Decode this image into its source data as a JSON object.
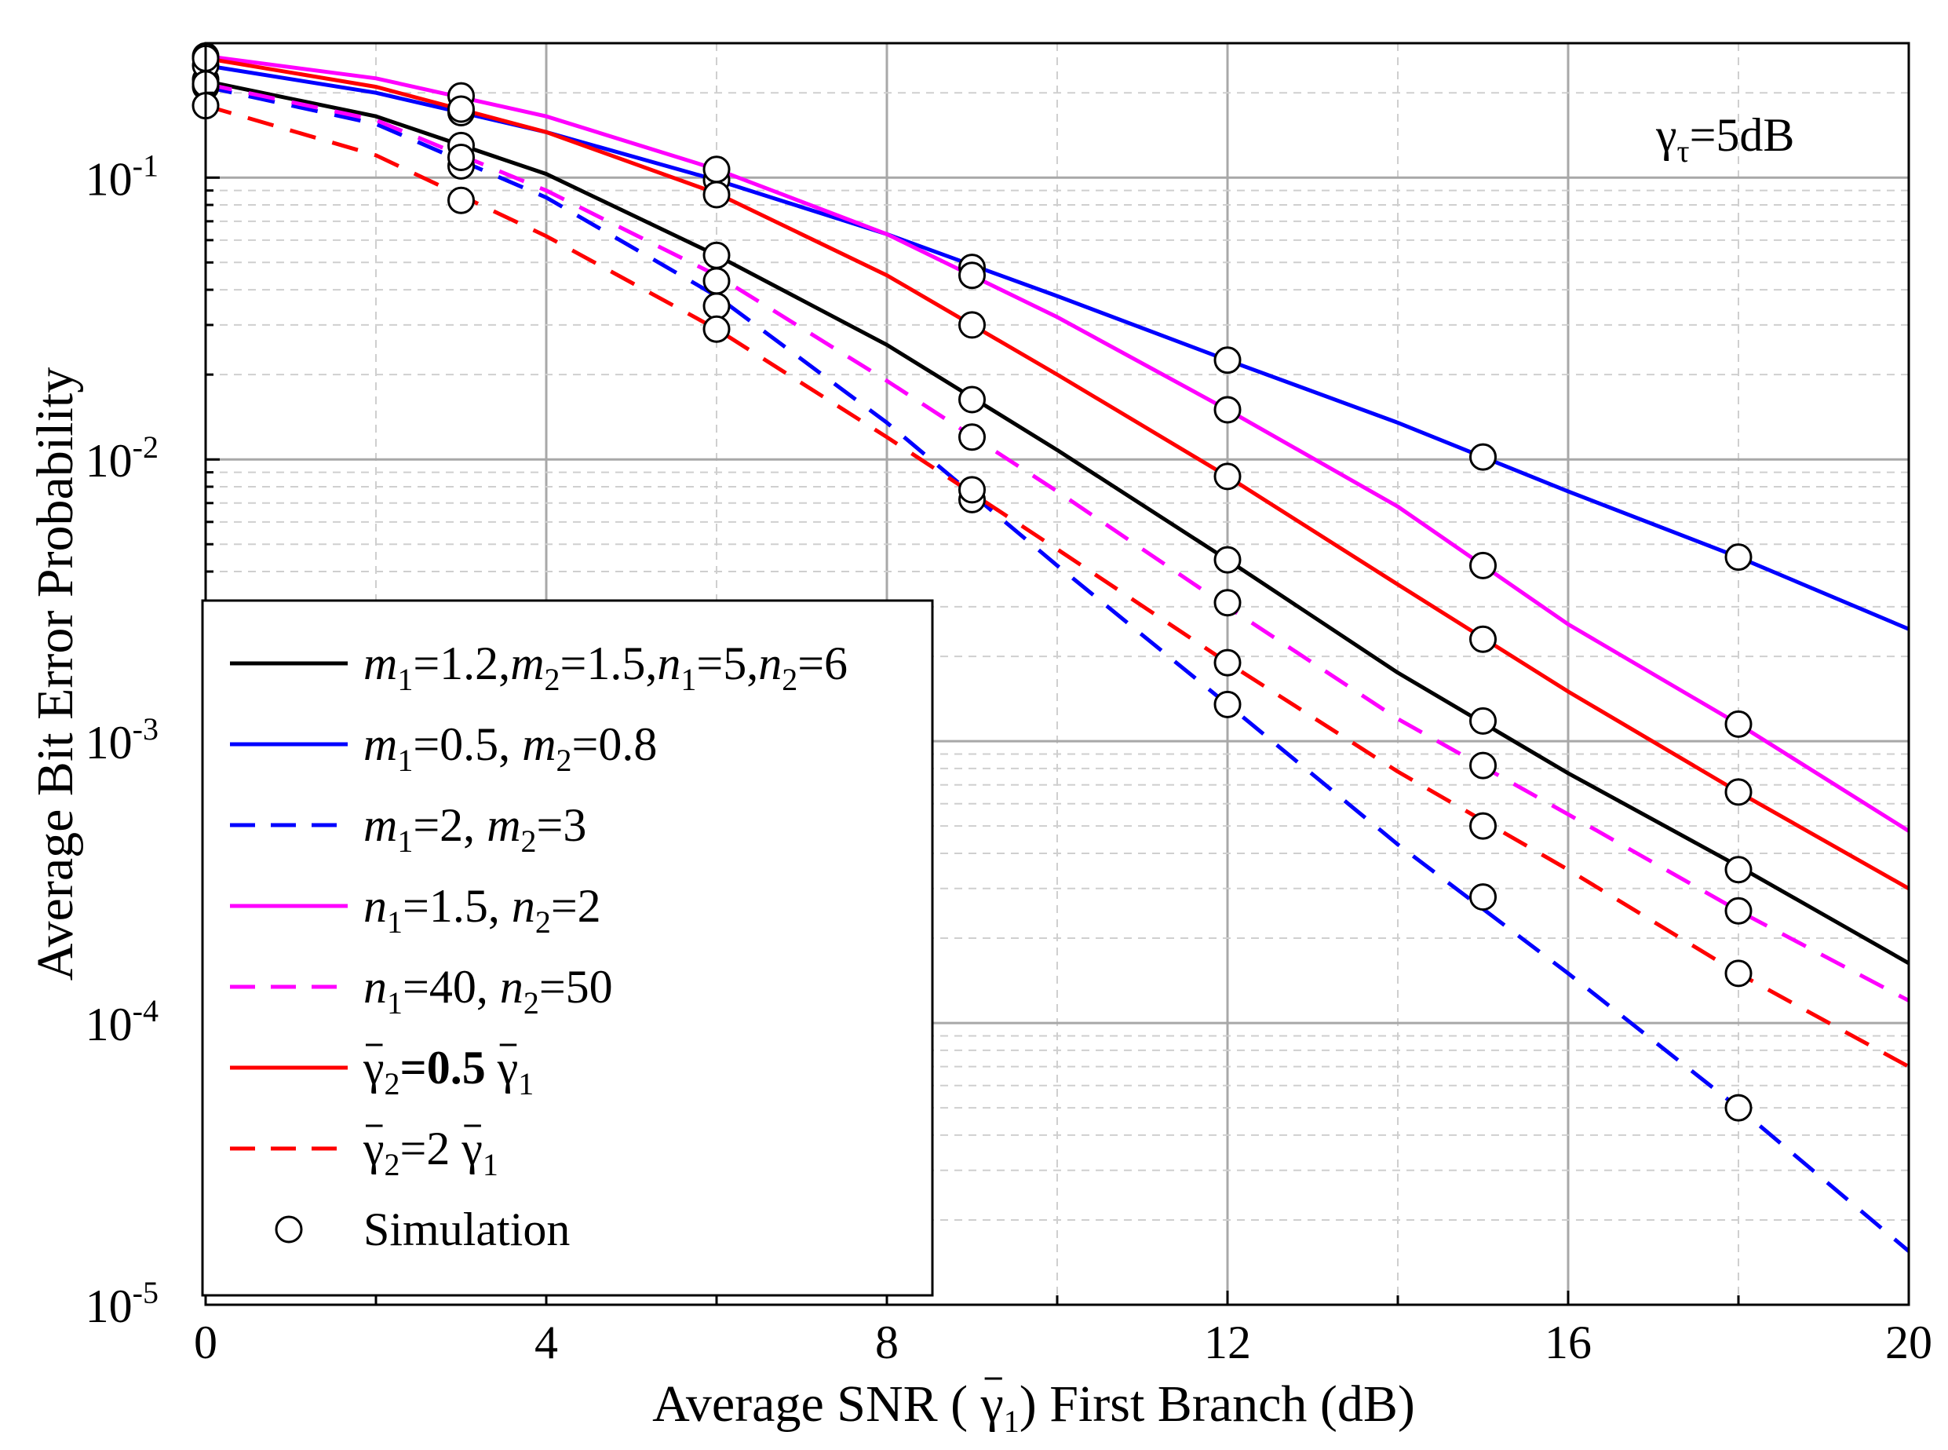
{
  "chart_data": {
    "type": "line",
    "ylabel": "Average Bit Error Probability",
    "xlabel_parts": {
      "before": "Average SNR ( ",
      "symbol": "γ",
      "sub": "1",
      "after": ") First Branch (dB)"
    },
    "annotation": {
      "symbol": "γ",
      "sub": "τ",
      "text": "=5dB"
    },
    "x_scale": "linear",
    "y_scale": "log",
    "xlim": [
      0,
      20
    ],
    "ylim": [
      1e-05,
      0.3
    ],
    "x_ticks": [
      0,
      4,
      8,
      12,
      16,
      20
    ],
    "x_tick_labels": [
      "0",
      "4",
      "8",
      "12",
      "16",
      "20"
    ],
    "y_ticks": [
      0.1,
      0.01,
      0.001,
      0.0001,
      1e-05
    ],
    "y_tick_labels": [
      {
        "base": "10",
        "exp": "-1"
      },
      {
        "base": "10",
        "exp": "-2"
      },
      {
        "base": "10",
        "exp": "-3"
      },
      {
        "base": "10",
        "exp": "-4"
      },
      {
        "base": "10",
        "exp": "-5"
      }
    ],
    "grid": true,
    "legend_position": "lower-left",
    "series": [
      {
        "id": "black-solid",
        "color": "#000000",
        "dash": "solid",
        "legend": "m1=1.2,m2=1.5,n1=5,n2=6",
        "legend_parts": [
          {
            "t": "m",
            "i": true
          },
          {
            "t": "1",
            "sub": true
          },
          {
            "t": "=1.2,"
          },
          {
            "t": "m",
            "i": true
          },
          {
            "t": "2",
            "sub": true
          },
          {
            "t": "=1.5,"
          },
          {
            "t": "n",
            "i": true
          },
          {
            "t": "1",
            "sub": true
          },
          {
            "t": "=5,"
          },
          {
            "t": "n",
            "i": true
          },
          {
            "t": "2",
            "sub": true
          },
          {
            "t": "=6"
          }
        ],
        "x": [
          0,
          2,
          4,
          6,
          8,
          10,
          12,
          14,
          16,
          18,
          20
        ],
        "y": [
          0.22,
          0.165,
          0.103,
          0.053,
          0.0255,
          0.0108,
          0.0044,
          0.00175,
          0.00077,
          0.00036,
          0.000163
        ],
        "sim_x": [
          0,
          3,
          6,
          9,
          12,
          15,
          18
        ],
        "sim_y": [
          0.223,
          0.13,
          0.053,
          0.0163,
          0.0044,
          0.00118,
          0.00035
        ]
      },
      {
        "id": "blue-solid",
        "color": "#0000ff",
        "dash": "solid",
        "legend": "m1=0.5, m2=0.8",
        "legend_parts": [
          {
            "t": "m",
            "i": true
          },
          {
            "t": "1",
            "sub": true
          },
          {
            "t": "=0.5, "
          },
          {
            "t": "m",
            "i": true
          },
          {
            "t": "2",
            "sub": true
          },
          {
            "t": "=0.8"
          }
        ],
        "x": [
          0,
          2,
          4,
          6,
          8,
          10,
          12,
          14,
          16,
          18,
          20
        ],
        "y": [
          0.25,
          0.2,
          0.145,
          0.098,
          0.063,
          0.038,
          0.0225,
          0.0135,
          0.0077,
          0.0045,
          0.0025
        ],
        "sim_x": [
          0,
          3,
          6,
          9,
          12,
          15,
          18
        ],
        "sim_y": [
          0.25,
          0.17,
          0.098,
          0.048,
          0.0225,
          0.0102,
          0.0045
        ]
      },
      {
        "id": "blue-dashed",
        "color": "#0000ff",
        "dash": "dashed",
        "legend": "m1=2, m2=3",
        "legend_parts": [
          {
            "t": "m",
            "i": true
          },
          {
            "t": "1",
            "sub": true
          },
          {
            "t": "=2, "
          },
          {
            "t": "m",
            "i": true
          },
          {
            "t": "2",
            "sub": true
          },
          {
            "t": "=3"
          }
        ],
        "x": [
          0,
          2,
          4,
          6,
          8,
          10,
          12,
          14,
          16,
          18,
          20
        ],
        "y": [
          0.21,
          0.155,
          0.085,
          0.038,
          0.0135,
          0.0042,
          0.00135,
          0.00043,
          0.00015,
          5e-05,
          1.55e-05
        ],
        "sim_x": [
          0,
          3,
          6,
          9,
          12,
          15,
          18
        ],
        "sim_y": [
          0.21,
          0.11,
          0.035,
          0.0072,
          0.00135,
          0.00028,
          5e-05
        ]
      },
      {
        "id": "magenta-solid",
        "color": "#ff00ff",
        "dash": "solid",
        "legend": "n1=1.5, n2=2",
        "legend_parts": [
          {
            "t": "n",
            "i": true
          },
          {
            "t": "1",
            "sub": true
          },
          {
            "t": "=1.5, "
          },
          {
            "t": "n",
            "i": true
          },
          {
            "t": "2",
            "sub": true
          },
          {
            "t": "=2"
          }
        ],
        "x": [
          0,
          2,
          4,
          6,
          8,
          10,
          12,
          14,
          16,
          18,
          20
        ],
        "y": [
          0.27,
          0.225,
          0.165,
          0.107,
          0.063,
          0.032,
          0.015,
          0.0068,
          0.0026,
          0.00115,
          0.00048
        ],
        "sim_x": [
          0,
          3,
          6,
          9,
          12,
          15,
          18
        ],
        "sim_y": [
          0.27,
          0.195,
          0.107,
          0.045,
          0.015,
          0.0042,
          0.00115
        ]
      },
      {
        "id": "magenta-dashed",
        "color": "#ff00ff",
        "dash": "dashed",
        "legend": "n1=40, n2=50",
        "legend_parts": [
          {
            "t": "n",
            "i": true
          },
          {
            "t": "1",
            "sub": true
          },
          {
            "t": "=40, "
          },
          {
            "t": "n",
            "i": true
          },
          {
            "t": "2",
            "sub": true
          },
          {
            "t": "=50"
          }
        ],
        "x": [
          0,
          2,
          4,
          6,
          8,
          10,
          12,
          14,
          16,
          18,
          20
        ],
        "y": [
          0.215,
          0.16,
          0.09,
          0.045,
          0.019,
          0.0077,
          0.003,
          0.0012,
          0.00055,
          0.00025,
          0.00012
        ],
        "sim_x": [
          0,
          3,
          6,
          9,
          12,
          15,
          18
        ],
        "sim_y": [
          0.215,
          0.118,
          0.043,
          0.012,
          0.0031,
          0.00082,
          0.00025
        ]
      },
      {
        "id": "red-solid",
        "color": "#ff0000",
        "dash": "solid",
        "legend": "γ2=0.5 γ1",
        "legend_parts": [
          {
            "t": "γ",
            "bar": true
          },
          {
            "t": "2",
            "sub": true
          },
          {
            "t": "=",
            "b": true
          },
          {
            "t": "0.5 ",
            "b": true
          },
          {
            "t": "γ",
            "bar": true
          },
          {
            "t": "1",
            "sub": true
          }
        ],
        "x": [
          0,
          2,
          4,
          6,
          8,
          10,
          12,
          14,
          16,
          18,
          20
        ],
        "y": [
          0.265,
          0.21,
          0.145,
          0.088,
          0.045,
          0.02,
          0.0087,
          0.0036,
          0.0015,
          0.00066,
          0.0003
        ],
        "sim_x": [
          0,
          3,
          6,
          9,
          12,
          15,
          18
        ],
        "sim_y": [
          0.265,
          0.175,
          0.087,
          0.03,
          0.0087,
          0.0023,
          0.00066
        ]
      },
      {
        "id": "red-dashed",
        "color": "#ff0000",
        "dash": "dashed",
        "legend": "γ2=2 γ1",
        "legend_parts": [
          {
            "t": "γ",
            "bar": true
          },
          {
            "t": "2",
            "sub": true
          },
          {
            "t": "=2 "
          },
          {
            "t": "γ",
            "bar": true
          },
          {
            "t": "1",
            "sub": true
          }
        ],
        "x": [
          0,
          2,
          4,
          6,
          8,
          10,
          12,
          14,
          16,
          18,
          20
        ],
        "y": [
          0.18,
          0.12,
          0.062,
          0.029,
          0.012,
          0.0048,
          0.0019,
          0.00078,
          0.00035,
          0.00015,
          7e-05
        ],
        "sim_x": [
          0,
          3,
          6,
          9,
          12,
          15,
          18
        ],
        "sim_y": [
          0.18,
          0.083,
          0.029,
          0.0078,
          0.0019,
          0.0005,
          0.00015
        ]
      }
    ],
    "simulation_legend": "Simulation"
  }
}
